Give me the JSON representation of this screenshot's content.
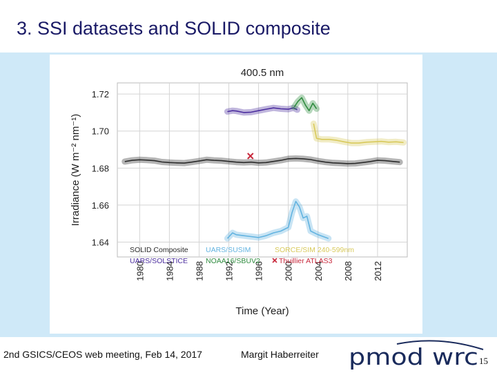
{
  "slide": {
    "title": "3. SSI datasets and SOLID composite",
    "page_number": "15"
  },
  "footer": {
    "event": "2nd GSICS/CEOS web meeting, Feb 14, 2017",
    "author": "Margit Haberreiter",
    "logo_text": "pmod wrc"
  },
  "colors": {
    "title": "#1a1a66",
    "background_panel": "#cfe9f8",
    "solid_composite": "#2a2a2a",
    "uars_solstice": "#4b2d9e",
    "uars_susim": "#62b3e0",
    "noaa16_sbuv2": "#2e8b3e",
    "sorce_sim": "#d8c95a",
    "thuillier": "#c8283c",
    "logo": "#1a2b5c"
  },
  "chart_data": {
    "type": "line",
    "title": "400.5 nm",
    "xlabel": "Time (Year)",
    "ylabel": "Irradiance (W m⁻² nm⁻¹)",
    "xlim": [
      1977,
      2016
    ],
    "ylim": [
      1.632,
      1.726
    ],
    "xticks": [
      1980,
      1984,
      1988,
      1992,
      1996,
      2000,
      2004,
      2008,
      2012
    ],
    "yticks": [
      1.64,
      1.66,
      1.68,
      1.7,
      1.72
    ],
    "ytick_labels": [
      "1.64",
      "1.66",
      "1.68",
      "1.70",
      "1.72"
    ],
    "legend_location": "bottom-left",
    "series": [
      {
        "name": "SOLID Composite",
        "color": "#2a2a2a",
        "x": [
          1978,
          1979,
          1980,
          1981,
          1982,
          1983,
          1984,
          1985,
          1986,
          1987,
          1988,
          1989,
          1990,
          1991,
          1992,
          1993,
          1994,
          1995,
          1996,
          1997,
          1998,
          1999,
          2000,
          2001,
          2002,
          2003,
          2004,
          2005,
          2006,
          2007,
          2008,
          2009,
          2010,
          2011,
          2012,
          2013,
          2014,
          2015
        ],
        "y": [
          1.6835,
          1.6842,
          1.6845,
          1.6843,
          1.684,
          1.6833,
          1.683,
          1.6828,
          1.6827,
          1.6832,
          1.6838,
          1.6845,
          1.6842,
          1.684,
          1.6836,
          1.6832,
          1.683,
          1.6832,
          1.6828,
          1.683,
          1.6836,
          1.6842,
          1.685,
          1.6852,
          1.685,
          1.6846,
          1.6838,
          1.6832,
          1.6828,
          1.6826,
          1.6824,
          1.6825,
          1.683,
          1.6835,
          1.6842,
          1.684,
          1.6836,
          1.6832
        ]
      },
      {
        "name": "UARS/SOLSTICE",
        "color": "#4b2d9e",
        "x": [
          1991.8,
          1992.5,
          1993,
          1994,
          1995,
          1996,
          1997,
          1998,
          1999,
          2000,
          2000.7,
          2001.2
        ],
        "y": [
          1.7105,
          1.711,
          1.7108,
          1.71,
          1.7102,
          1.711,
          1.7118,
          1.7125,
          1.712,
          1.7118,
          1.7125,
          1.7115
        ]
      },
      {
        "name": "UARS/SUSIM",
        "color": "#62b3e0",
        "x": [
          1991.8,
          1992.5,
          1993,
          1994,
          1995,
          1996,
          1997,
          1998,
          1999,
          2000,
          2000.5,
          2001,
          2001.5,
          2002,
          2002.5,
          2003,
          2004,
          2005.4
        ],
        "y": [
          1.642,
          1.645,
          1.644,
          1.6435,
          1.643,
          1.6425,
          1.6435,
          1.645,
          1.646,
          1.648,
          1.656,
          1.662,
          1.659,
          1.653,
          1.654,
          1.646,
          1.644,
          1.642
        ]
      },
      {
        "name": "NOAA16/SBUV2",
        "color": "#2e8b3e",
        "x": [
          2000.8,
          2001.3,
          2001.8,
          2002.3,
          2002.8,
          2003.3,
          2003.8
        ],
        "y": [
          1.713,
          1.716,
          1.718,
          1.714,
          1.711,
          1.715,
          1.712
        ]
      },
      {
        "name": "SORCE/SIM 240-599nm",
        "color": "#d8c95a",
        "x": [
          2003.4,
          2003.8,
          2004.5,
          2005.5,
          2006.5,
          2007.5,
          2008.5,
          2009.5,
          2010.5,
          2011.5,
          2012.5,
          2013.5,
          2014.5,
          2015.5
        ],
        "y": [
          1.704,
          1.696,
          1.6955,
          1.6955,
          1.695,
          1.6942,
          1.6935,
          1.6935,
          1.694,
          1.6942,
          1.6944,
          1.694,
          1.6942,
          1.6938
        ]
      },
      {
        "name": "Thuillier ATLAS3",
        "color": "#c8283c",
        "marker": "x",
        "x": [
          1994.9
        ],
        "y": [
          1.6865
        ]
      }
    ]
  }
}
